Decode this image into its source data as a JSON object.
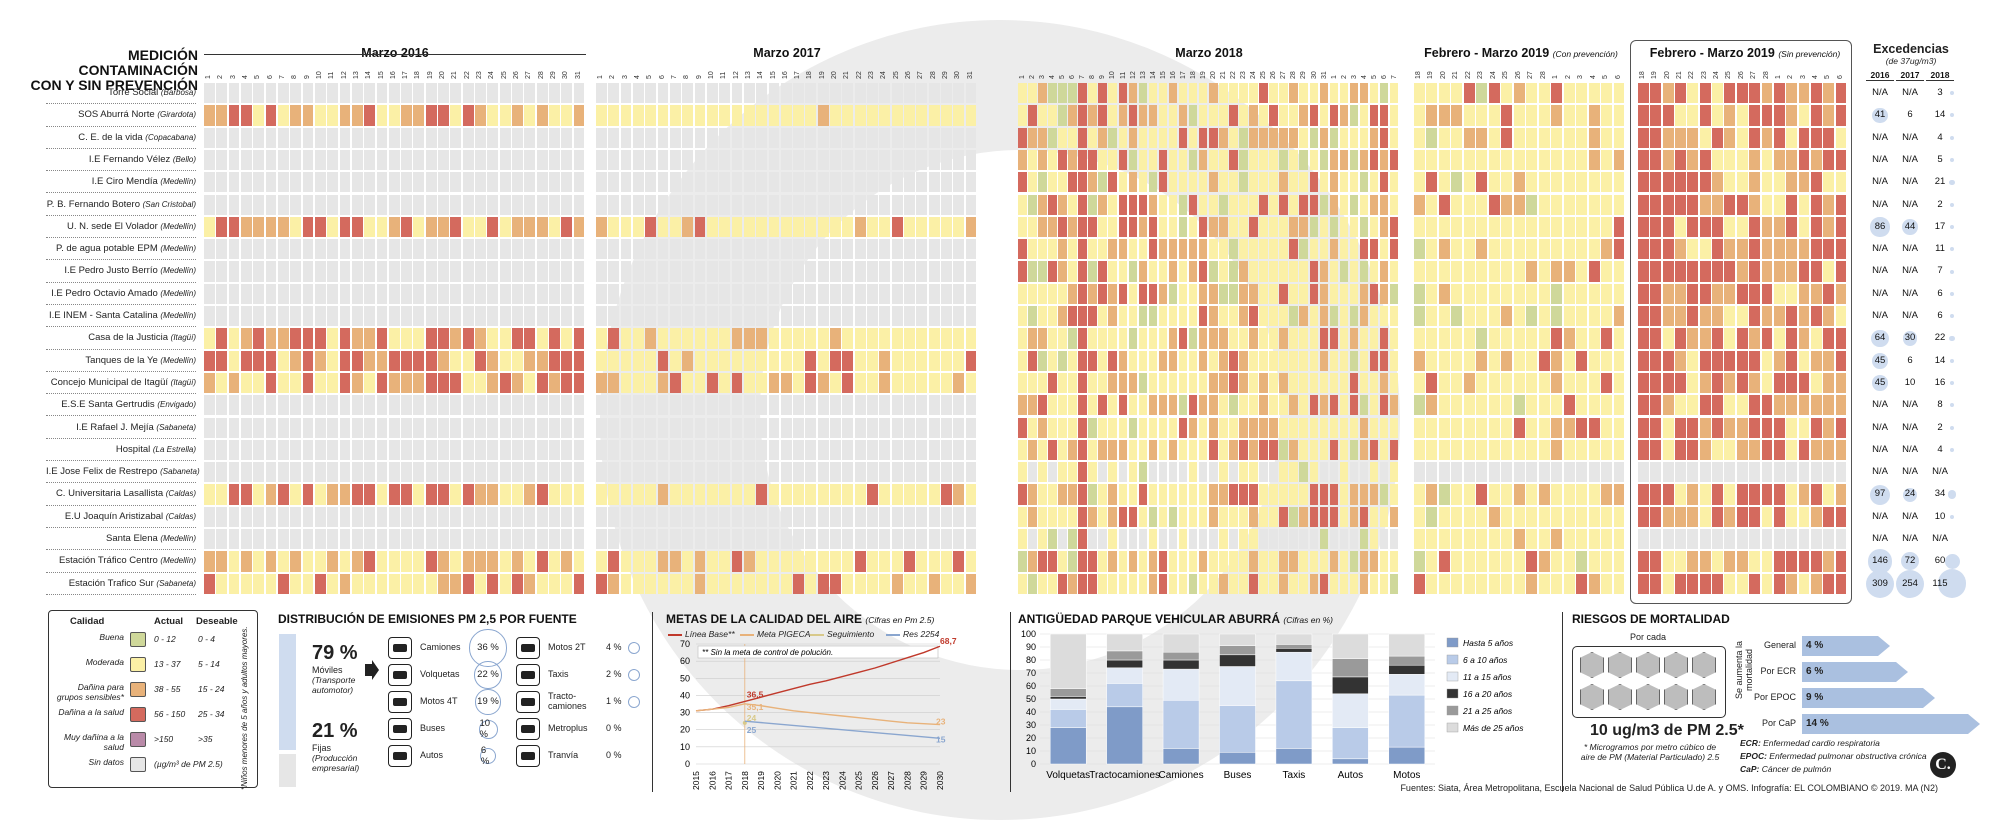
{
  "title_line1": "MEDICIÓN CONTAMINACIÓN",
  "title_line2": "CON Y SIN PREVENCIÓN",
  "blocks": [
    {
      "label": "Marzo 2016",
      "note": ""
    },
    {
      "label": "Marzo 2017",
      "note": ""
    },
    {
      "label": "Marzo 2018",
      "note": ""
    },
    {
      "label": "Febrero - Marzo 2019",
      "note": "(Con prevención)"
    },
    {
      "label": "Febrero - Marzo 2019",
      "note": "(Sin prevención)"
    }
  ],
  "days_block1": [
    "1",
    "2",
    "3",
    "4",
    "5",
    "6",
    "7",
    "8",
    "9",
    "10",
    "11",
    "12",
    "13",
    "14",
    "15",
    "16",
    "17",
    "18",
    "19",
    "20",
    "21",
    "22",
    "23",
    "24",
    "25",
    "26",
    "27",
    "28",
    "29",
    "30",
    "31"
  ],
  "days_block4": [
    "18",
    "19",
    "20",
    "21",
    "22",
    "23",
    "24",
    "25",
    "26",
    "27",
    "28",
    "1",
    "2",
    "3",
    "4",
    "5",
    "6"
  ],
  "stations": [
    {
      "name": "Torre Social",
      "city": "(Barbosa)"
    },
    {
      "name": "SOS Aburrá Norte",
      "city": "(Girardota)"
    },
    {
      "name": "C. E. de la vida",
      "city": "(Copacabana)"
    },
    {
      "name": "I.E Fernando Vélez",
      "city": "(Bello)"
    },
    {
      "name": "I.E Ciro Mendía",
      "city": "(Medellín)"
    },
    {
      "name": "P. B. Fernando Botero",
      "city": "(San Cristobal)"
    },
    {
      "name": "U. N. sede El Volador",
      "city": "(Medellín)"
    },
    {
      "name": "P. de agua potable EPM",
      "city": "(Medellín)"
    },
    {
      "name": "I.E Pedro Justo Berrío",
      "city": "(Medellín)"
    },
    {
      "name": "I.E Pedro Octavio Amado",
      "city": "(Medellín)"
    },
    {
      "name": "I.E INEM - Santa Catalina",
      "city": "(Medellín)"
    },
    {
      "name": "Casa de la Justicia",
      "city": "(Itagüí)"
    },
    {
      "name": "Tanques de la Ye",
      "city": "(Medellín)"
    },
    {
      "name": "Concejo Municipal de Itagüí",
      "city": "(Itagüí)"
    },
    {
      "name": "E.S.E Santa Gertrudis",
      "city": "(Envigado)"
    },
    {
      "name": "I.E Rafael J. Mejía",
      "city": "(Sabaneta)"
    },
    {
      "name": "Hospital",
      "city": "(La Estrella)"
    },
    {
      "name": "I.E Jose Felix de Restrepo",
      "city": "(Sabaneta)"
    },
    {
      "name": "C. Universitaria Lasallista",
      "city": "(Caldas)"
    },
    {
      "name": "E.U Joaquín Aristizabal",
      "city": "(Caldas)"
    },
    {
      "name": "Santa Elena",
      "city": "(Medellín)"
    },
    {
      "name": "Estación Tráfico Centro",
      "city": "(Medellín)"
    },
    {
      "name": "Estación Trafico Sur",
      "city": "(Sabaneta)"
    }
  ],
  "excedencias": {
    "title": "Excedencias",
    "subtitle": "(de 37ug/m3)",
    "years": [
      "2016",
      "2017",
      "2018"
    ],
    "rows": [
      [
        "N/A",
        "N/A",
        "3"
      ],
      [
        "41",
        "6",
        "14"
      ],
      [
        "N/A",
        "N/A",
        "4"
      ],
      [
        "N/A",
        "N/A",
        "5"
      ],
      [
        "N/A",
        "N/A",
        "21"
      ],
      [
        "N/A",
        "N/A",
        "2"
      ],
      [
        "86",
        "44",
        "17"
      ],
      [
        "N/A",
        "N/A",
        "11"
      ],
      [
        "N/A",
        "N/A",
        "7"
      ],
      [
        "N/A",
        "N/A",
        "6"
      ],
      [
        "N/A",
        "N/A",
        "6"
      ],
      [
        "64",
        "30",
        "22"
      ],
      [
        "45",
        "6",
        "14"
      ],
      [
        "45",
        "10",
        "16"
      ],
      [
        "N/A",
        "N/A",
        "8"
      ],
      [
        "N/A",
        "N/A",
        "2"
      ],
      [
        "N/A",
        "N/A",
        "4"
      ],
      [
        "N/A",
        "N/A",
        "N/A"
      ],
      [
        "97",
        "24",
        "34"
      ],
      [
        "N/A",
        "N/A",
        "10"
      ],
      [
        "N/A",
        "N/A",
        "N/A"
      ],
      [
        "146",
        "72",
        "60"
      ],
      [
        "309",
        "254",
        "115"
      ]
    ]
  },
  "colors": {
    "buena": "#cfd89a",
    "moderada": "#fbf0a6",
    "danina_sens": "#e8b27a",
    "danina": "#d46a5e",
    "muy_danina": "#b98aa8",
    "sin_datos": "#e6e6e6"
  },
  "legend": {
    "headers": [
      "Calidad",
      "Actual",
      "Deseable"
    ],
    "rows": [
      {
        "label": "Buena",
        "actual": "0 - 12",
        "deseable": "0 - 4",
        "color": "buena"
      },
      {
        "label": "Moderada",
        "actual": "13 - 37",
        "deseable": "5 - 14",
        "color": "moderada"
      },
      {
        "label": "Dañina para grupos sensibles*",
        "actual": "38 - 55",
        "deseable": "15 - 24",
        "color": "danina_sens"
      },
      {
        "label": "Dañina a la salud",
        "actual": "56 - 150",
        "deseable": "25 - 34",
        "color": "danina"
      },
      {
        "label": "Muy dañina a la salud",
        "actual": ">150",
        "deseable": ">35",
        "color": "muy_danina"
      },
      {
        "label": "Sin datos",
        "actual": "(µg/m³ de PM 2.5)",
        "deseable": "",
        "color": "sin_datos"
      }
    ],
    "footnote": "*Niños menores de 5 años y adultos mayores."
  },
  "emisiones": {
    "title": "DISTRIBUCIÓN DE EMISIONES PM 2,5 POR FUENTE",
    "moviles_pct": "79 %",
    "moviles_label": "Móviles",
    "moviles_sub": "(Transporte automotor)",
    "fijas_pct": "21 %",
    "fijas_label": "Fijas",
    "fijas_sub": "(Producción empresarial)",
    "left": [
      {
        "name": "Camiones",
        "pct": "36 %",
        "v": 36
      },
      {
        "name": "Volquetas",
        "pct": "22 %",
        "v": 22
      },
      {
        "name": "Motos 4T",
        "pct": "19 %",
        "v": 19
      },
      {
        "name": "Buses",
        "pct": "10 %",
        "v": 10
      },
      {
        "name": "Autos",
        "pct": "6 %",
        "v": 6
      }
    ],
    "right": [
      {
        "name": "Motos 2T",
        "pct": "4 %",
        "v": 4
      },
      {
        "name": "Taxis",
        "pct": "2 %",
        "v": 2
      },
      {
        "name": "Tracto-camiones",
        "pct": "1 %",
        "v": 1
      },
      {
        "name": "Metroplus",
        "pct": "0 %",
        "v": 0
      },
      {
        "name": "Tranvía",
        "pct": "0 %",
        "v": 0
      }
    ]
  },
  "metas": {
    "title": "METAS DE LA CALIDAD DEL AIRE",
    "subtitle": "(Cifras en Pm 2.5)",
    "legend": [
      "Línea Base**",
      "Meta PIGECA",
      "Seguimiento",
      "Res 2254"
    ],
    "note": "** Sin la meta de control de polución.",
    "chart_data": {
      "type": "line",
      "x": [
        2015,
        2016,
        2017,
        2018,
        2019,
        2020,
        2021,
        2022,
        2023,
        2024,
        2025,
        2026,
        2027,
        2028,
        2029,
        2030
      ],
      "ylim": [
        0,
        70
      ],
      "yticks": [
        0,
        10,
        20,
        30,
        40,
        50,
        60,
        70
      ],
      "series": [
        {
          "name": "Línea Base**",
          "color": "#c0392b",
          "x": [
            2015,
            2016,
            2017,
            2018,
            2019,
            2020,
            2021,
            2022,
            2023,
            2024,
            2025,
            2026,
            2027,
            2028,
            2029,
            2030
          ],
          "values": [
            31,
            32,
            34,
            36.5,
            39,
            41.5,
            44,
            46.5,
            48.5,
            51,
            53.5,
            56,
            59,
            62,
            65,
            68.7
          ]
        },
        {
          "name": "Meta PIGECA",
          "color": "#e8b27a",
          "x": [
            2015,
            2016,
            2017,
            2018,
            2019,
            2020,
            2021,
            2022,
            2023,
            2024,
            2025,
            2026,
            2027,
            2028,
            2029,
            2030
          ],
          "values": [
            31,
            32,
            33,
            35.1,
            34,
            32.5,
            31,
            30,
            29,
            28,
            27,
            26,
            25,
            24,
            23.5,
            23
          ]
        },
        {
          "name": "Seguimiento",
          "color": "#d8c98a",
          "x": [
            2018
          ],
          "values": [
            24
          ]
        },
        {
          "name": "Res 2254",
          "color": "#8aa6cf",
          "x": [
            2018,
            2030
          ],
          "values": [
            25,
            15
          ]
        }
      ],
      "labels": [
        "68,7",
        "36,5",
        "35,1",
        "24",
        "25",
        "23",
        "15"
      ]
    }
  },
  "antiguedad": {
    "title": "ANTIGÜEDAD PARQUE VEHICULAR ABURRÁ",
    "subtitle": "(Cifras en %)",
    "chart_data": {
      "type": "bar",
      "stacked": true,
      "categories": [
        "Volquetas",
        "Tractocamiones",
        "Camiones",
        "Buses",
        "Taxis",
        "Autos",
        "Motos"
      ],
      "ylim": [
        0,
        100
      ],
      "yticks": [
        0,
        10,
        20,
        30,
        40,
        50,
        60,
        70,
        80,
        90,
        100
      ],
      "series": [
        {
          "name": "Hasta 5 años",
          "color": "#7f9bc8",
          "values": [
            28,
            44,
            12,
            9,
            12,
            4,
            13
          ]
        },
        {
          "name": "6 a 10 años",
          "color": "#b9cbe8",
          "values": [
            14,
            18,
            37,
            36,
            52,
            24,
            40
          ]
        },
        {
          "name": "11 a 15 años",
          "color": "#e3eaf5",
          "values": [
            8,
            12,
            24,
            30,
            22,
            26,
            16
          ]
        },
        {
          "name": "16 a 20 años",
          "color": "#333333",
          "values": [
            2,
            6,
            7,
            9,
            3,
            13,
            7
          ]
        },
        {
          "name": "21 a 25 años",
          "color": "#9a9a9a",
          "values": [
            6,
            7,
            6,
            7,
            3,
            14,
            7
          ]
        },
        {
          "name": "Más de 25 años",
          "color": "#dcdcdc",
          "values": [
            42,
            13,
            14,
            9,
            8,
            19,
            17
          ]
        }
      ]
    }
  },
  "riesgos": {
    "title": "RIESGOS DE MORTALIDAD",
    "por_cada": "Por cada",
    "valor": "10 ug/m3 de PM 2.5*",
    "nota": "* Microgramos por metro cúbico de aire de PM (Material Particulado) 2.5",
    "side": "Se aumenta la mortalidad",
    "rows": [
      {
        "label": "General",
        "pct": "4 %",
        "v": 4
      },
      {
        "label": "Por ECR",
        "pct": "6 %",
        "v": 6
      },
      {
        "label": "Por EPOC",
        "pct": "9 %",
        "v": 9
      },
      {
        "label": "Por CaP",
        "pct": "14 %",
        "v": 14
      }
    ],
    "defs": [
      {
        "k": "ECR:",
        "v": "Enfermedad cardio respiratoria"
      },
      {
        "k": "EPOC:",
        "v": "Enfermedad pulmonar obstructiva crónica"
      },
      {
        "k": "CaP:",
        "v": "Cáncer de pulmón"
      }
    ]
  },
  "fuentes": "Fuentes: Siata, Área Metropolitana, Escuela Nacional de Salud Pública U.de A. y OMS. Infografía: EL COLOMBIANO © 2019. MA (N2)"
}
